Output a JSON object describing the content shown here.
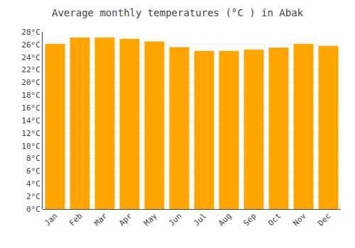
{
  "chart_data": {
    "type": "bar",
    "title": "Average monthly temperatures (°C ) in Abak",
    "categories": [
      "Jan",
      "Feb",
      "Mar",
      "Apr",
      "May",
      "Jun",
      "Jul",
      "Aug",
      "Sep",
      "Oct",
      "Nov",
      "Dec"
    ],
    "values": [
      26.1,
      27.1,
      27.1,
      26.9,
      26.5,
      25.6,
      25.0,
      25.0,
      25.2,
      25.5,
      26.1,
      25.8
    ],
    "color": "#FFA500",
    "ylim": [
      0,
      28
    ],
    "yticks": [
      {
        "value": 0,
        "label": "0°C"
      },
      {
        "value": 2,
        "label": "2°C"
      },
      {
        "value": 4,
        "label": "4°C"
      },
      {
        "value": 6,
        "label": "6°C"
      },
      {
        "value": 8,
        "label": "8°C"
      },
      {
        "value": 10,
        "label": "10°C"
      },
      {
        "value": 12,
        "label": "12°C"
      },
      {
        "value": 14,
        "label": "14°C"
      },
      {
        "value": 16,
        "label": "16°C"
      },
      {
        "value": 18,
        "label": "18°C"
      },
      {
        "value": 20,
        "label": "20°C"
      },
      {
        "value": 22,
        "label": "22°C"
      },
      {
        "value": 24,
        "label": "24°C"
      },
      {
        "value": 26,
        "label": "26°C"
      },
      {
        "value": 28,
        "label": "28°C"
      }
    ],
    "grid": true
  }
}
